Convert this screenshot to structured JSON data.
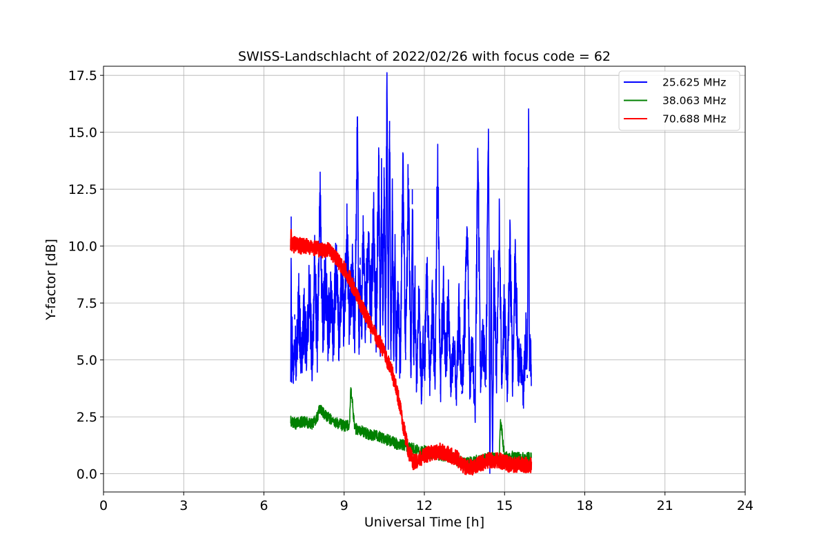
{
  "chart_data": {
    "type": "line",
    "title": "SWISS-Landschlacht of 2022/02/26 with focus code = 62",
    "xlabel": "Universal Time [h]",
    "ylabel": "Y-factor [dB]",
    "xlim": [
      0,
      24
    ],
    "ylim": [
      -0.8,
      17.9
    ],
    "xticks": [
      0,
      3,
      6,
      9,
      12,
      15,
      18,
      21,
      24
    ],
    "xtick_labels": [
      "0",
      "3",
      "6",
      "9",
      "12",
      "15",
      "18",
      "21",
      "24"
    ],
    "yticks": [
      0,
      2.5,
      5,
      7.5,
      10,
      12.5,
      15,
      17.5
    ],
    "ytick_labels": [
      "0.0",
      "2.5",
      "5.0",
      "7.5",
      "10.0",
      "12.5",
      "15.0",
      "17.5"
    ],
    "grid": true,
    "legend_position": "top-right",
    "series": [
      {
        "name": "25.625 MHz",
        "color": "#0000ff",
        "x": [
          7.0,
          7.02,
          7.04,
          7.06,
          7.1,
          7.15,
          7.2,
          7.3,
          7.4,
          7.5,
          7.6,
          7.7,
          7.8,
          7.9,
          8.0,
          8.1,
          8.2,
          8.3,
          8.4,
          8.5,
          8.6,
          8.7,
          8.8,
          8.9,
          9.0,
          9.1,
          9.2,
          9.3,
          9.4,
          9.5,
          9.55,
          9.6,
          9.65,
          9.7,
          9.8,
          9.9,
          10.0,
          10.1,
          10.2,
          10.3,
          10.35,
          10.4,
          10.45,
          10.5,
          10.55,
          10.6,
          10.65,
          10.7,
          10.75,
          10.8,
          10.85,
          10.9,
          10.95,
          11.0,
          11.1,
          11.2,
          11.3,
          11.4,
          11.5,
          11.55,
          11.6,
          11.65,
          11.7,
          11.8,
          11.9,
          11.95,
          12.0,
          12.1,
          12.2,
          12.3,
          12.4,
          12.5,
          12.6,
          12.7,
          12.8,
          12.9,
          13.0,
          13.1,
          13.2,
          13.3,
          13.4,
          13.5,
          13.6,
          13.7,
          13.8,
          13.9,
          14.0,
          14.1,
          14.2,
          14.3,
          14.4,
          14.45,
          14.5,
          14.55,
          14.6,
          14.7,
          14.8,
          14.9,
          15.0,
          15.1,
          15.2,
          15.3,
          15.4,
          15.5,
          15.6,
          15.7,
          15.8,
          15.85,
          15.9,
          15.93,
          15.96,
          16.0
        ],
        "y": [
          4.5,
          11.3,
          4.0,
          6.5,
          4.2,
          7.0,
          4.8,
          7.5,
          5.0,
          6.8,
          5.2,
          8.3,
          4.8,
          9.0,
          5.5,
          12.2,
          6.0,
          8.8,
          6.2,
          8.0,
          5.8,
          9.2,
          6.0,
          8.5,
          6.5,
          10.5,
          6.5,
          8.8,
          6.2,
          15.7,
          5.5,
          9.5,
          6.0,
          10.5,
          6.8,
          10.0,
          7.2,
          11.0,
          6.5,
          13.5,
          6.0,
          12.8,
          7.0,
          13.0,
          5.5,
          17.0,
          6.5,
          15.5,
          5.0,
          12.0,
          5.5,
          9.5,
          4.8,
          8.0,
          4.5,
          13.5,
          5.0,
          13.0,
          4.2,
          12.5,
          5.5,
          8.0,
          4.0,
          7.5,
          3.2,
          6.0,
          4.5,
          8.5,
          3.8,
          7.5,
          4.2,
          14.3,
          3.5,
          8.0,
          5.0,
          7.2,
          4.0,
          5.5,
          3.8,
          7.0,
          3.5,
          6.5,
          10.8,
          4.0,
          5.5,
          2.7,
          13.9,
          4.5,
          6.0,
          3.8,
          14.6,
          0.0,
          9.5,
          0.5,
          8.5,
          4.5,
          11.0,
          4.0,
          7.5,
          3.5,
          10.0,
          4.2,
          9.5,
          5.0,
          4.8,
          3.5,
          6.0,
          4.2,
          15.3,
          4.5,
          5.5,
          4.3
        ],
        "noise": 1.6
      },
      {
        "name": "38.063 MHz",
        "color": "#008000",
        "x": [
          7.0,
          7.2,
          7.5,
          7.8,
          8.0,
          8.1,
          8.2,
          8.4,
          8.6,
          8.8,
          9.0,
          9.2,
          9.25,
          9.4,
          9.6,
          9.8,
          10.0,
          10.2,
          10.4,
          10.6,
          10.8,
          11.0,
          11.2,
          11.4,
          11.6,
          11.8,
          12.0,
          12.2,
          12.4,
          12.6,
          12.8,
          13.0,
          13.2,
          13.4,
          13.6,
          13.8,
          14.0,
          14.2,
          14.4,
          14.6,
          14.8,
          14.85,
          15.0,
          15.2,
          15.4,
          15.6,
          15.8,
          16.0
        ],
        "y": [
          2.3,
          2.2,
          2.3,
          2.2,
          2.5,
          2.9,
          2.7,
          2.5,
          2.3,
          2.2,
          2.1,
          2.1,
          3.8,
          2.0,
          1.9,
          1.8,
          1.7,
          1.7,
          1.6,
          1.5,
          1.4,
          1.3,
          1.3,
          1.2,
          1.1,
          1.0,
          1.0,
          0.9,
          0.9,
          0.8,
          0.8,
          0.7,
          0.6,
          0.5,
          0.5,
          0.5,
          0.6,
          0.6,
          0.7,
          0.7,
          0.7,
          2.4,
          0.7,
          0.8,
          0.7,
          0.7,
          0.7,
          0.7
        ],
        "noise": 0.25
      },
      {
        "name": "70.688 MHz",
        "color": "#ff0000",
        "x": [
          7.0,
          7.02,
          7.05,
          7.2,
          7.4,
          7.6,
          7.8,
          8.0,
          8.2,
          8.4,
          8.6,
          8.8,
          9.0,
          9.2,
          9.4,
          9.6,
          9.8,
          10.0,
          10.2,
          10.4,
          10.6,
          10.8,
          11.0,
          11.2,
          11.4,
          11.6,
          11.8,
          12.0,
          12.2,
          12.4,
          12.6,
          12.8,
          13.0,
          13.2,
          13.4,
          13.6,
          13.8,
          14.0,
          14.2,
          14.4,
          14.6,
          14.8,
          15.0,
          15.2,
          15.4,
          15.6,
          15.8,
          16.0
        ],
        "y": [
          9.9,
          10.5,
          10.0,
          10.1,
          10.0,
          10.0,
          9.9,
          9.9,
          9.8,
          9.8,
          9.6,
          9.3,
          9.0,
          8.6,
          8.0,
          7.5,
          7.0,
          6.5,
          6.0,
          5.6,
          5.0,
          4.4,
          3.5,
          2.2,
          1.0,
          0.5,
          0.6,
          0.8,
          0.9,
          0.9,
          1.0,
          0.9,
          0.8,
          0.7,
          0.4,
          0.3,
          0.3,
          0.4,
          0.5,
          0.6,
          0.6,
          0.6,
          0.5,
          0.4,
          0.4,
          0.4,
          0.4,
          0.4
        ],
        "noise": 0.35
      }
    ]
  }
}
